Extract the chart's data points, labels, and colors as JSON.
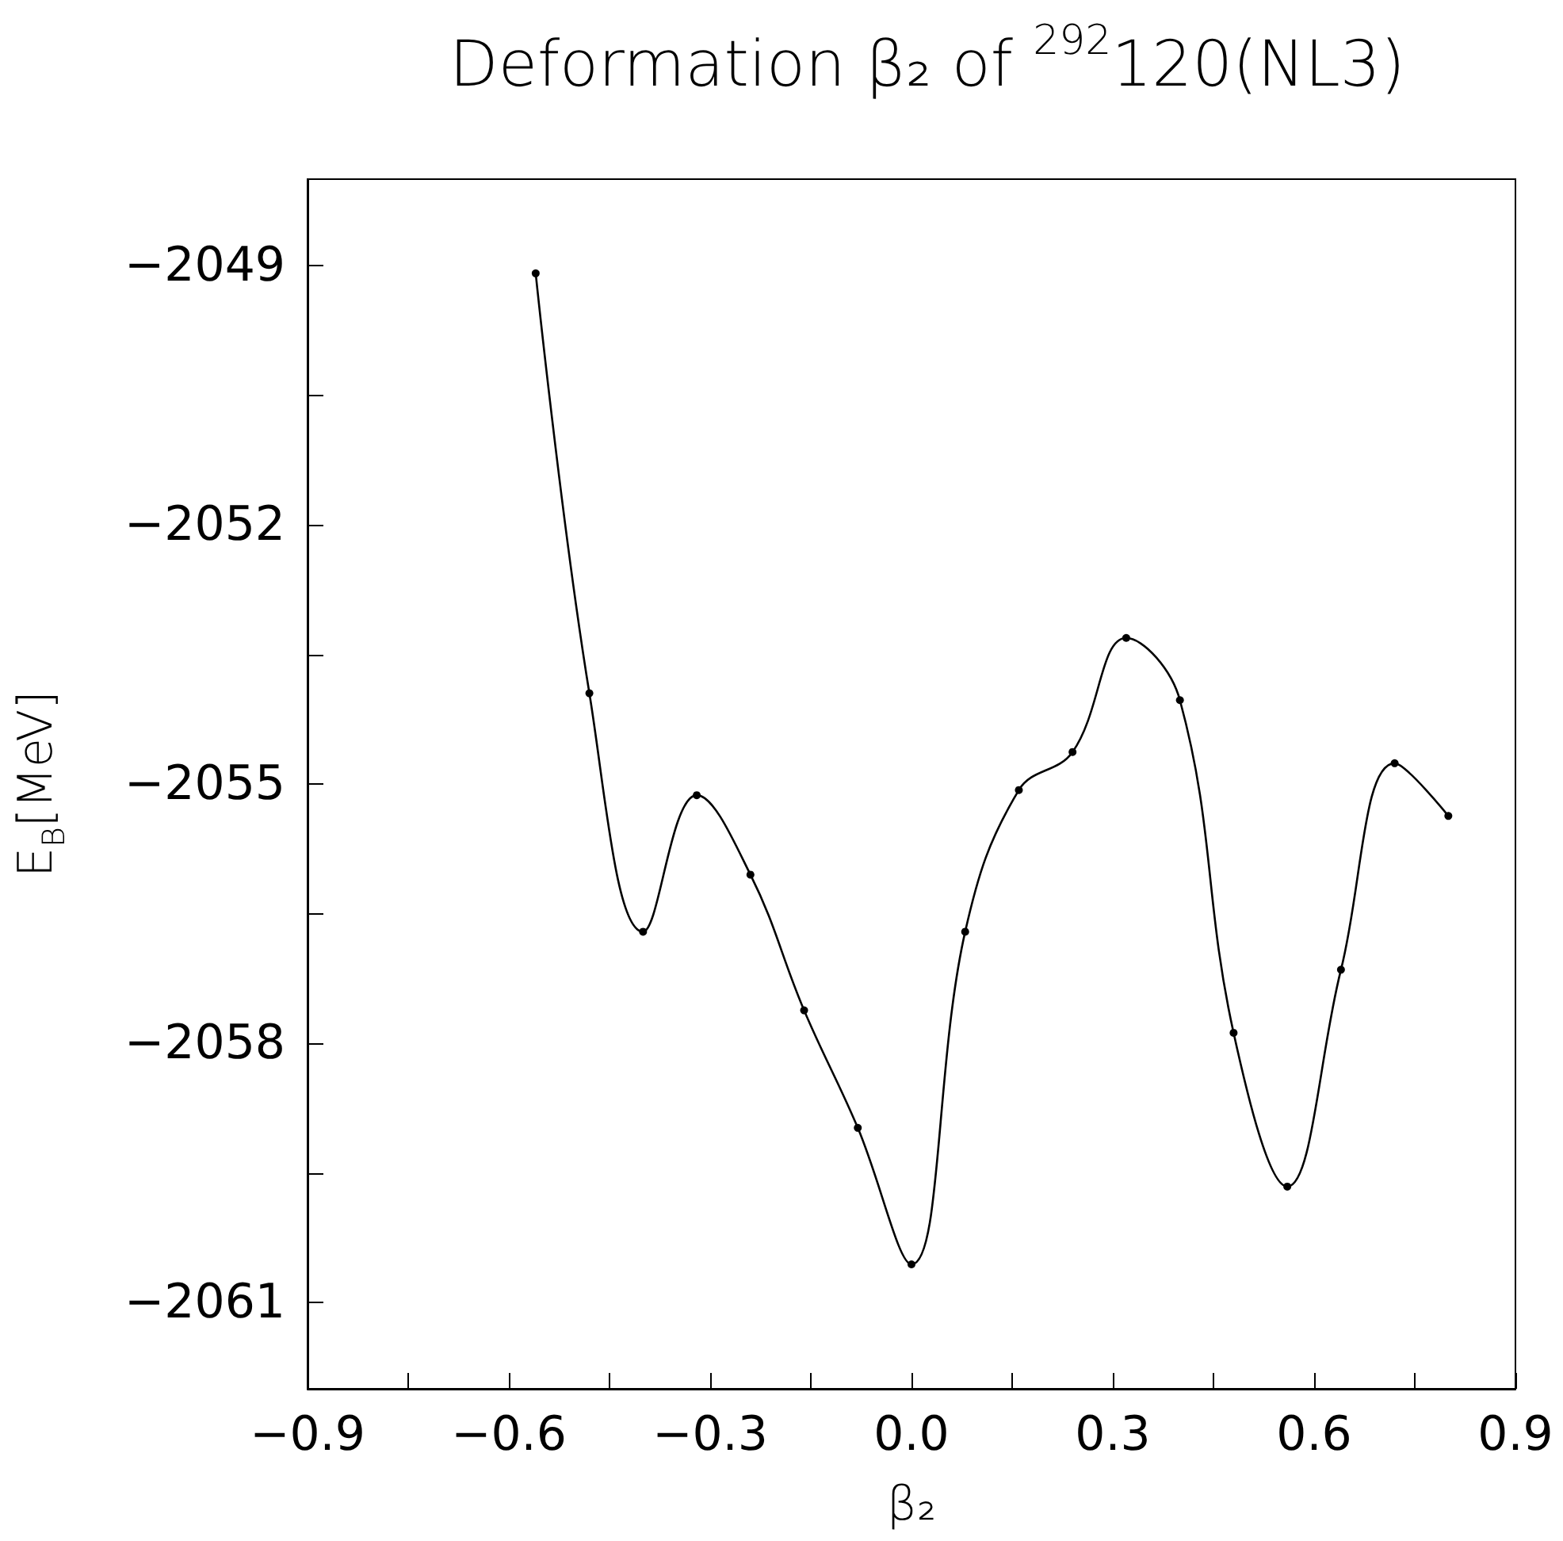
{
  "chart_data": {
    "type": "line",
    "title": "Deformation β₂ of $^{292}$120(NL3)",
    "xlabel": "β₂",
    "ylabel": "E$_{B}$[MeV]",
    "x": [
      -0.56,
      -0.48,
      -0.4,
      -0.32,
      -0.24,
      -0.16,
      -0.08,
      0.0,
      0.08,
      0.16,
      0.24,
      0.32,
      0.4,
      0.48,
      0.56,
      0.64,
      0.72,
      0.8
    ],
    "series": [
      {
        "color": "#000000",
        "values": [
          -2049.09,
          -2053.95,
          -2056.71,
          -2055.13,
          -2056.05,
          -2057.62,
          -2058.98,
          -2060.56,
          -2056.71,
          -2055.07,
          -2054.63,
          -2053.31,
          -2054.03,
          -2057.88,
          -2059.66,
          -2057.15,
          -2054.76,
          -2055.37
        ]
      }
    ],
    "xlim": [
      -0.9,
      0.9
    ],
    "xticks": [
      {
        "value": -0.9,
        "label": "−0.9"
      },
      {
        "value": -0.75,
        "label": null
      },
      {
        "value": -0.6,
        "label": "−0.6"
      },
      {
        "value": -0.45,
        "label": null
      },
      {
        "value": -0.3,
        "label": "−0.3"
      },
      {
        "value": -0.15,
        "label": null
      },
      {
        "value": 0,
        "label": "0.0"
      },
      {
        "value": 0.15,
        "label": null
      },
      0.3,
      {
        "value": 0.45,
        "label": null
      },
      0.6,
      {
        "value": 0.75,
        "label": null
      },
      0.9
    ],
    "ylim": [
      -2062,
      -2048
    ],
    "yticks": [
      {
        "value": -2062,
        "label": null
      },
      {
        "value": -2061,
        "label": "−2061"
      },
      {
        "value": -2059.5,
        "label": null
      },
      {
        "value": -2058,
        "label": "−2058"
      },
      {
        "value": -2056.5,
        "label": null
      },
      {
        "value": -2055,
        "label": "−2055"
      },
      {
        "value": -2053.5,
        "label": null
      },
      {
        "value": -2052,
        "label": "−2052"
      },
      {
        "value": -2050.5,
        "label": null
      },
      {
        "value": -2049,
        "label": "−2049"
      }
    ],
    "grid": false,
    "marker": "circle",
    "line_style": "solid"
  }
}
